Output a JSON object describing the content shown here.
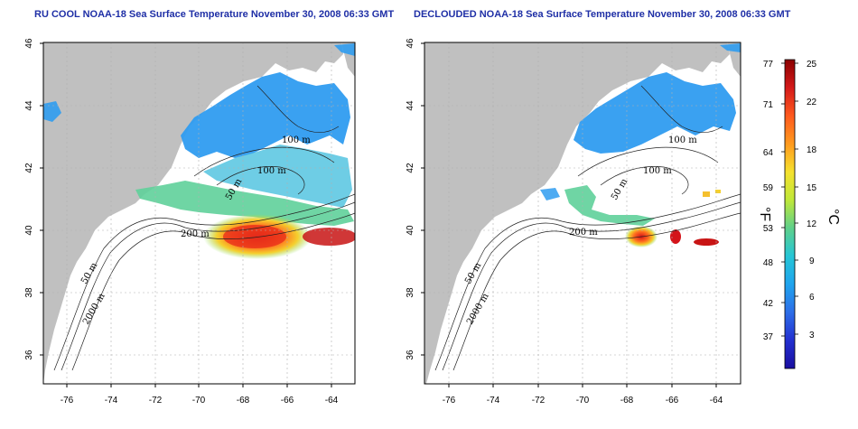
{
  "titles": {
    "left": "RU COOL NOAA-18 Sea Surface Temperature November 30, 2008 06:33 GMT",
    "right": "DECLOUDED NOAA-18 Sea Surface Temperature November 30, 2008 06:33 GMT"
  },
  "axes": {
    "x_ticks": [
      "-76",
      "-74",
      "-72",
      "-70",
      "-68",
      "-66",
      "-64"
    ],
    "y_ticks": [
      "46",
      "44",
      "42",
      "40",
      "38",
      "36"
    ]
  },
  "contour_labels": {
    "left": [
      "100 m",
      "100 m",
      "50 m",
      "200 m",
      "50 m",
      "2000 m"
    ],
    "right": [
      "100 m",
      "100 m",
      "50 m",
      "200 m",
      "50 m",
      "2000 m"
    ]
  },
  "colorbar": {
    "fahrenheit_ticks": [
      "77",
      "71",
      "64",
      "59",
      "53",
      "48",
      "42",
      "37"
    ],
    "celsius_ticks": [
      "25",
      "22",
      "18",
      "15",
      "12",
      "9",
      "6",
      "3"
    ],
    "unit_f": "°F",
    "unit_c": "°C",
    "stops": [
      "#8b0000",
      "#d41a1a",
      "#ff5a1e",
      "#ff9a1e",
      "#f5e12e",
      "#bfe83a",
      "#5fd08a",
      "#26c6d6",
      "#1fa4ee",
      "#2d6ee8",
      "#2330d0",
      "#1a0ea0"
    ]
  },
  "colors": {
    "land": "#c0c0c0",
    "sst_warm": "#e03a1a",
    "sst_mid": "#c8e03a",
    "sst_cool": "#2f9cf0",
    "title": "#1f2fa6"
  }
}
